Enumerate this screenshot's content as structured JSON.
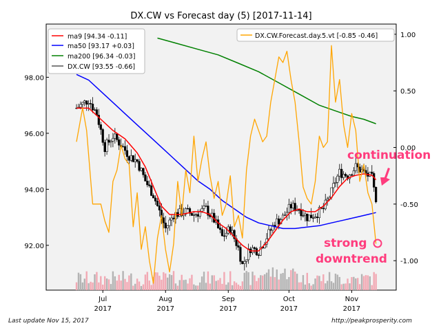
{
  "chart_data": {
    "type": "line",
    "title": "DX.CW vs Forecast day (5)  [2017-11-14]",
    "x_ticks": [
      {
        "label": "Jul",
        "year": "2017",
        "day": 13
      },
      {
        "label": "Aug",
        "year": "2017",
        "day": 44
      },
      {
        "label": "Sep",
        "year": "2017",
        "day": 75
      },
      {
        "label": "Oct",
        "year": "2017",
        "day": 105
      },
      {
        "label": "Nov",
        "year": "2017",
        "day": 136
      }
    ],
    "xlim": [
      -15,
      158
    ],
    "left_axis": {
      "ylim": [
        90.4,
        99.9
      ],
      "ticks": [
        "92.00",
        "94.00",
        "96.00",
        "98.00"
      ]
    },
    "right_axis": {
      "ylim": [
        -1.26,
        1.09
      ],
      "ticks": [
        "-1.00",
        "-0.50",
        "0.00",
        "0.50",
        "1.00"
      ]
    },
    "legend_left": [
      {
        "name": "ma9 [94.34 -0.11]",
        "color": "#ff0000"
      },
      {
        "name": "ma50 [93.17 +0.03]",
        "color": "#0000ff"
      },
      {
        "name": "ma200 [96.34 -0.03]",
        "color": "#008000"
      },
      {
        "name": "DX.CW [93.55 -0.66]",
        "color": "#555555"
      }
    ],
    "legend_right": [
      {
        "name": "DX.CW.Forecast.day.5.vt [-0.85 -0.46]",
        "color": "#ffa500"
      }
    ],
    "price_anchors": [
      [
        0,
        96.9
      ],
      [
        6,
        97.2
      ],
      [
        10,
        96.7
      ],
      [
        14,
        95.5
      ],
      [
        18,
        95.9
      ],
      [
        22,
        95.6
      ],
      [
        26,
        95.2
      ],
      [
        30,
        95.0
      ],
      [
        34,
        94.3
      ],
      [
        38,
        93.8
      ],
      [
        42,
        93.0
      ],
      [
        44,
        92.6
      ],
      [
        48,
        93.1
      ],
      [
        54,
        93.2
      ],
      [
        58,
        93.1
      ],
      [
        64,
        93.3
      ],
      [
        68,
        92.9
      ],
      [
        72,
        92.3
      ],
      [
        76,
        92.6
      ],
      [
        80,
        91.9
      ],
      [
        82,
        91.3
      ],
      [
        86,
        91.9
      ],
      [
        90,
        91.8
      ],
      [
        94,
        92.3
      ],
      [
        98,
        92.8
      ],
      [
        102,
        93.0
      ],
      [
        106,
        93.4
      ],
      [
        110,
        93.3
      ],
      [
        114,
        93.0
      ],
      [
        118,
        93.1
      ],
      [
        122,
        93.3
      ],
      [
        126,
        93.9
      ],
      [
        128,
        94.3
      ],
      [
        130,
        94.6
      ],
      [
        134,
        94.5
      ],
      [
        138,
        94.8
      ],
      [
        142,
        94.6
      ],
      [
        146,
        94.4
      ],
      [
        148,
        93.55
      ]
    ],
    "ma9_anchors": [
      [
        0,
        96.9
      ],
      [
        6,
        96.9
      ],
      [
        12,
        96.5
      ],
      [
        18,
        96.1
      ],
      [
        24,
        95.8
      ],
      [
        30,
        95.3
      ],
      [
        34,
        94.8
      ],
      [
        38,
        94.1
      ],
      [
        42,
        93.4
      ],
      [
        46,
        93.1
      ],
      [
        52,
        93.1
      ],
      [
        58,
        93.2
      ],
      [
        62,
        93.2
      ],
      [
        66,
        93.1
      ],
      [
        70,
        92.8
      ],
      [
        74,
        92.6
      ],
      [
        78,
        92.3
      ],
      [
        82,
        92.0
      ],
      [
        86,
        91.8
      ],
      [
        90,
        91.8
      ],
      [
        94,
        92.1
      ],
      [
        98,
        92.5
      ],
      [
        102,
        92.9
      ],
      [
        106,
        93.2
      ],
      [
        110,
        93.3
      ],
      [
        114,
        93.2
      ],
      [
        118,
        93.2
      ],
      [
        122,
        93.4
      ],
      [
        126,
        93.7
      ],
      [
        130,
        94.1
      ],
      [
        134,
        94.4
      ],
      [
        138,
        94.5
      ],
      [
        142,
        94.55
      ],
      [
        146,
        94.5
      ],
      [
        148,
        94.34
      ]
    ],
    "ma50_anchors": [
      [
        0,
        98.1
      ],
      [
        6,
        97.9
      ],
      [
        12,
        97.5
      ],
      [
        18,
        97.1
      ],
      [
        24,
        96.7
      ],
      [
        30,
        96.3
      ],
      [
        36,
        95.9
      ],
      [
        42,
        95.5
      ],
      [
        48,
        95.1
      ],
      [
        54,
        94.7
      ],
      [
        60,
        94.3
      ],
      [
        66,
        94.0
      ],
      [
        72,
        93.6
      ],
      [
        78,
        93.3
      ],
      [
        84,
        93.0
      ],
      [
        90,
        92.8
      ],
      [
        96,
        92.7
      ],
      [
        102,
        92.6
      ],
      [
        108,
        92.6
      ],
      [
        114,
        92.65
      ],
      [
        120,
        92.7
      ],
      [
        126,
        92.8
      ],
      [
        132,
        92.9
      ],
      [
        138,
        93.0
      ],
      [
        144,
        93.1
      ],
      [
        148,
        93.17
      ]
    ],
    "ma200_anchors": [
      [
        40,
        99.4
      ],
      [
        50,
        99.2
      ],
      [
        60,
        99.0
      ],
      [
        70,
        98.8
      ],
      [
        80,
        98.5
      ],
      [
        90,
        98.2
      ],
      [
        100,
        97.8
      ],
      [
        110,
        97.4
      ],
      [
        120,
        97.0
      ],
      [
        128,
        96.8
      ],
      [
        136,
        96.6
      ],
      [
        142,
        96.5
      ],
      [
        148,
        96.34
      ]
    ],
    "forecast_anchors": [
      [
        0,
        0.05
      ],
      [
        3,
        0.35
      ],
      [
        5,
        0.15
      ],
      [
        8,
        -0.5
      ],
      [
        12,
        -0.5
      ],
      [
        14,
        -0.65
      ],
      [
        16,
        -0.75
      ],
      [
        18,
        -0.3
      ],
      [
        20,
        -0.2
      ],
      [
        22,
        0.02
      ],
      [
        24,
        -0.1
      ],
      [
        26,
        -0.15
      ],
      [
        28,
        -0.7
      ],
      [
        30,
        -0.4
      ],
      [
        32,
        -0.9
      ],
      [
        34,
        -0.7
      ],
      [
        36,
        -1.0
      ],
      [
        38,
        -1.2
      ],
      [
        40,
        -0.8
      ],
      [
        42,
        -0.6
      ],
      [
        44,
        -0.9
      ],
      [
        46,
        -1.1
      ],
      [
        48,
        -0.85
      ],
      [
        50,
        -0.3
      ],
      [
        52,
        -0.6
      ],
      [
        54,
        -0.2
      ],
      [
        56,
        -0.4
      ],
      [
        58,
        0.1
      ],
      [
        60,
        -0.3
      ],
      [
        62,
        -0.1
      ],
      [
        64,
        0.05
      ],
      [
        66,
        -0.25
      ],
      [
        68,
        -0.45
      ],
      [
        70,
        -0.3
      ],
      [
        72,
        -0.6
      ],
      [
        74,
        -0.5
      ],
      [
        76,
        -0.25
      ],
      [
        78,
        -0.7
      ],
      [
        80,
        -0.6
      ],
      [
        82,
        -0.8
      ],
      [
        84,
        -0.2
      ],
      [
        86,
        0.1
      ],
      [
        88,
        0.25
      ],
      [
        90,
        0.15
      ],
      [
        92,
        0.05
      ],
      [
        94,
        0.1
      ],
      [
        96,
        0.4
      ],
      [
        98,
        0.6
      ],
      [
        100,
        0.8
      ],
      [
        102,
        0.75
      ],
      [
        104,
        0.85
      ],
      [
        106,
        0.6
      ],
      [
        108,
        0.4
      ],
      [
        110,
        0.05
      ],
      [
        112,
        -0.35
      ],
      [
        114,
        -0.45
      ],
      [
        116,
        -0.5
      ],
      [
        118,
        -0.3
      ],
      [
        120,
        0.1
      ],
      [
        122,
        0.0
      ],
      [
        124,
        0.05
      ],
      [
        126,
        0.9
      ],
      [
        128,
        0.4
      ],
      [
        130,
        0.6
      ],
      [
        132,
        0.2
      ],
      [
        134,
        0.0
      ],
      [
        136,
        0.3
      ],
      [
        138,
        0.15
      ],
      [
        140,
        -0.3
      ],
      [
        142,
        -0.15
      ],
      [
        144,
        -0.4
      ],
      [
        146,
        -0.5
      ],
      [
        148,
        -0.85
      ]
    ],
    "annotations": [
      {
        "text": "continuation",
        "color": "#ff3c7d"
      },
      {
        "text": "strong",
        "color": "#ff3c7d"
      },
      {
        "text": "downtrend",
        "color": "#ff3c7d"
      }
    ]
  },
  "footer": {
    "left": "Last update Nov 15, 2017",
    "right": "http://peakprosperity.com"
  }
}
